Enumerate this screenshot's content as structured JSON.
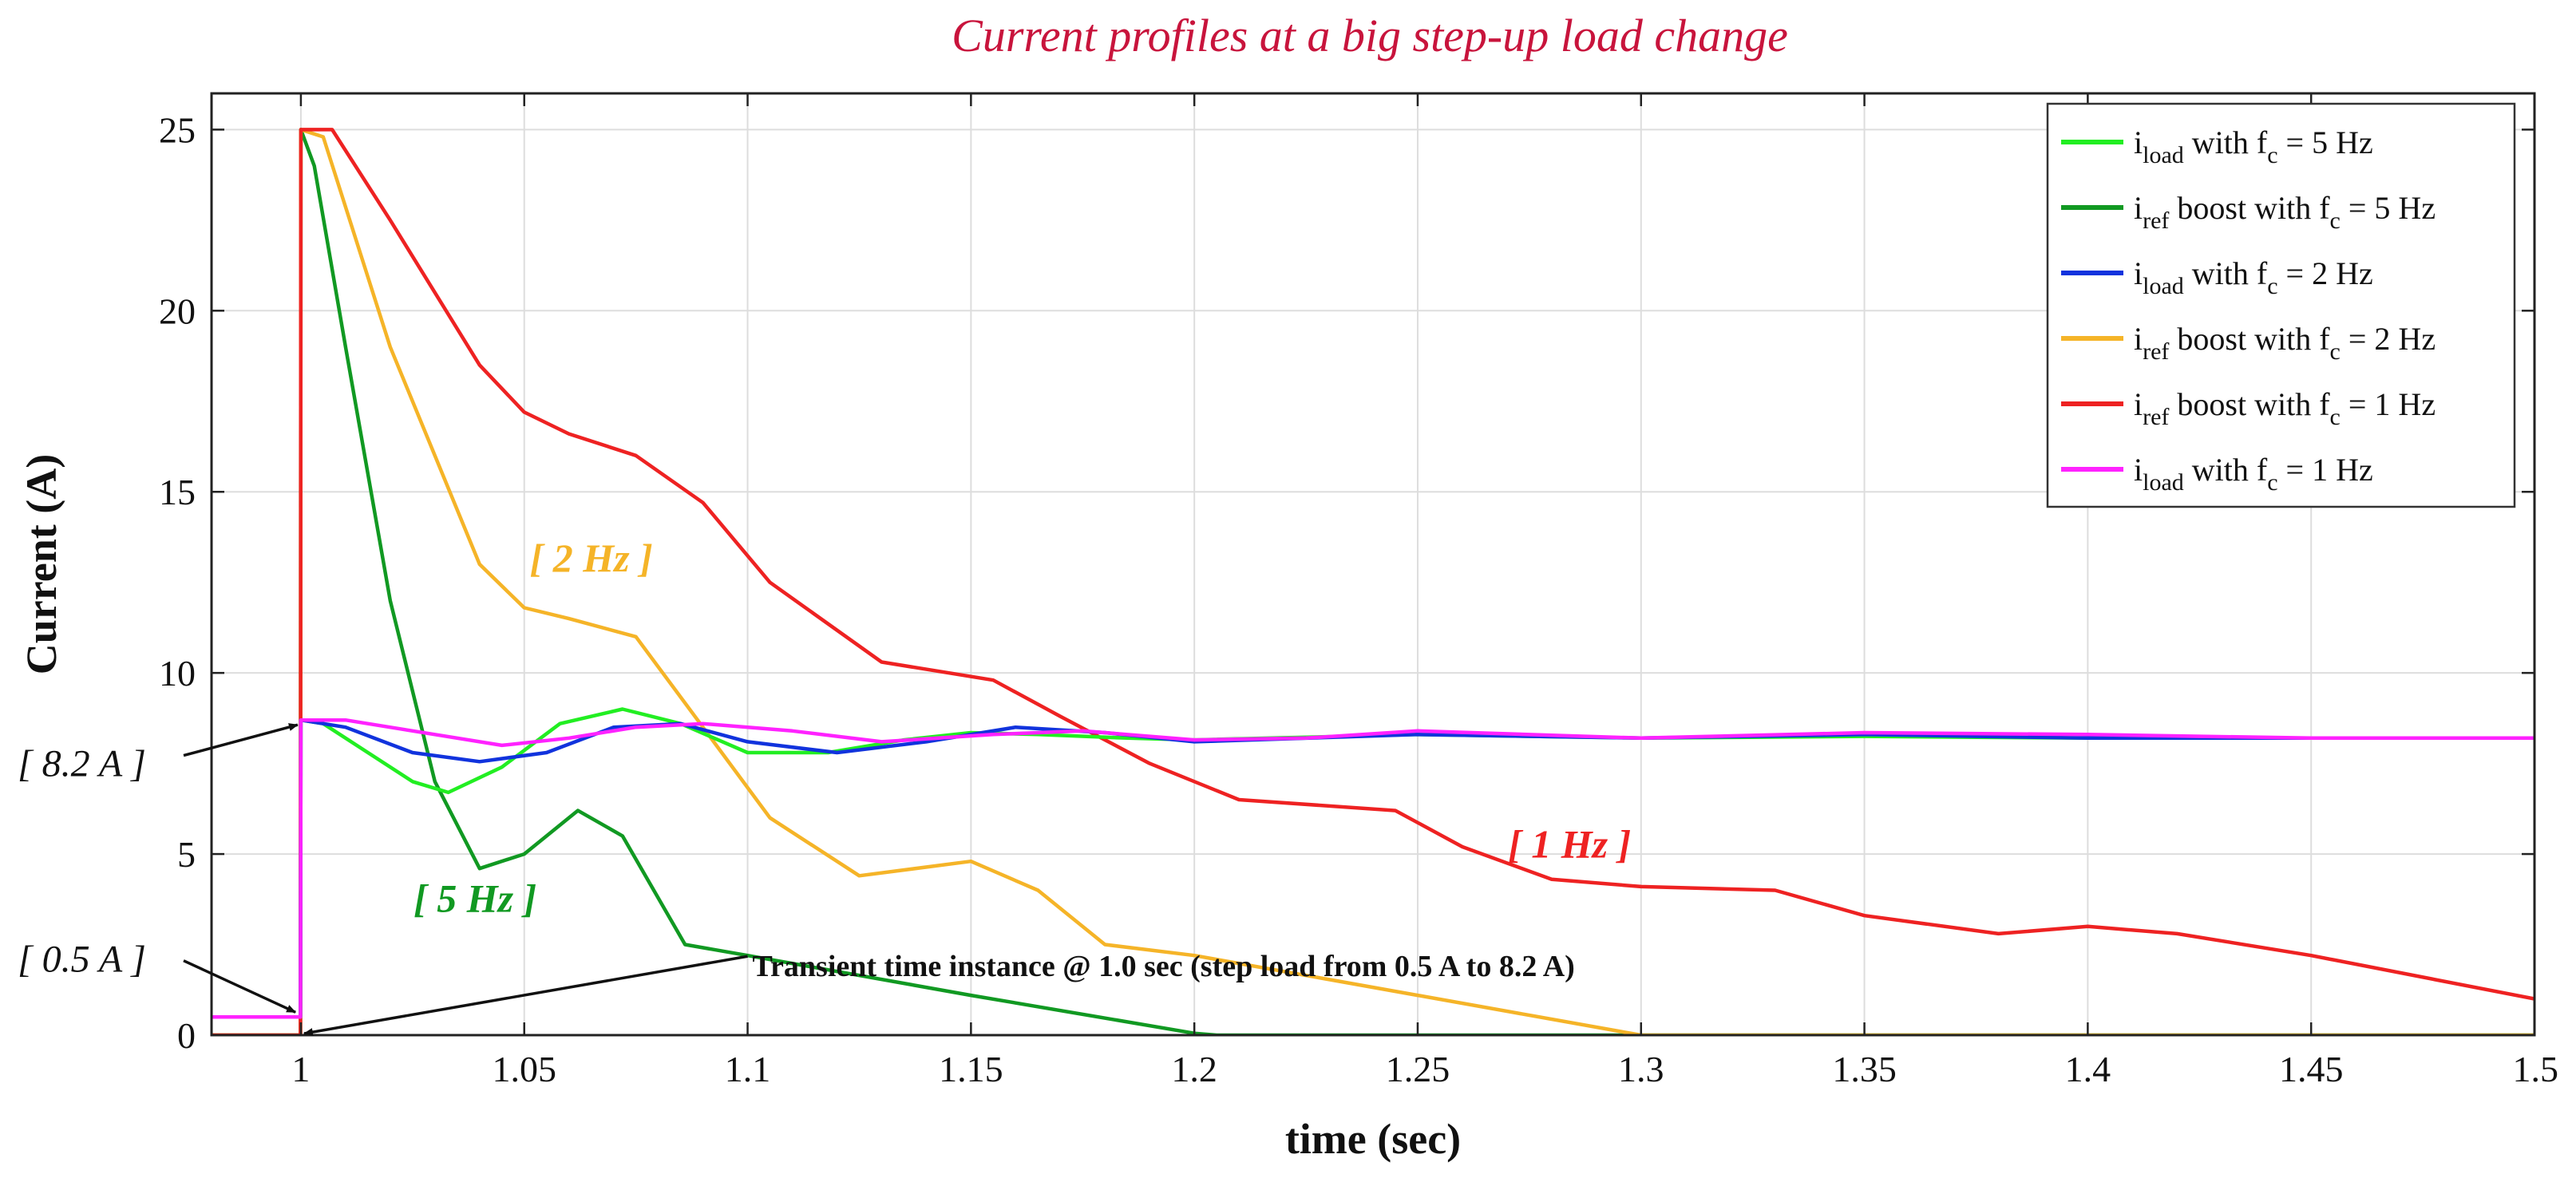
{
  "chart_data": {
    "type": "line",
    "title": "Current profiles at a big step-up load change",
    "xlabel": "time (sec)",
    "ylabel": "Current (A)",
    "xlim": [
      0.98,
      1.5
    ],
    "ylim": [
      0,
      26
    ],
    "grid": true,
    "legend_position": "top-right",
    "x_ticks": [
      1,
      1.05,
      1.1,
      1.15,
      1.2,
      1.25,
      1.3,
      1.35,
      1.4,
      1.45,
      1.5
    ],
    "x_tick_labels": [
      "1",
      "1.05",
      "1.1",
      "1.15",
      "1.2",
      "1.25",
      "1.3",
      "1.35",
      "1.4",
      "1.45",
      "1.5"
    ],
    "y_ticks": [
      0,
      5,
      10,
      15,
      20,
      25
    ],
    "y_tick_labels": [
      "0",
      "5",
      "10",
      "15",
      "20",
      "25"
    ],
    "series": [
      {
        "name": "i_load with f_c = 5 Hz",
        "legend": {
          "main": "i",
          "sub": "load",
          "mid": " with f",
          "sub2": "c",
          "tail": " = 5 Hz"
        },
        "color": "#22ee22",
        "x": [
          0.98,
          0.9999,
          1.0,
          1.005,
          1.015,
          1.025,
          1.033,
          1.045,
          1.058,
          1.072,
          1.085,
          1.1,
          1.118,
          1.135,
          1.15,
          1.165,
          1.185,
          1.2,
          1.25,
          1.3,
          1.35,
          1.4,
          1.45,
          1.5
        ],
        "y": [
          0.5,
          0.5,
          8.7,
          8.6,
          7.8,
          7.0,
          6.7,
          7.4,
          8.6,
          9.0,
          8.6,
          7.8,
          7.8,
          8.15,
          8.35,
          8.3,
          8.2,
          8.15,
          8.3,
          8.2,
          8.25,
          8.2,
          8.2,
          8.2
        ]
      },
      {
        "name": "i_ref boost with f_c = 5 Hz",
        "legend": {
          "main": "i",
          "sub": "ref",
          "mid": " boost with f",
          "sub2": "c",
          "tail": " = 5 Hz"
        },
        "color": "#119922",
        "x": [
          0.98,
          0.9999,
          1.0,
          1.003,
          1.01,
          1.02,
          1.03,
          1.04,
          1.05,
          1.062,
          1.072,
          1.086,
          1.1,
          1.15,
          1.2,
          1.205,
          1.3,
          1.4,
          1.5
        ],
        "y": [
          0,
          0,
          25.0,
          24.0,
          19.0,
          12.0,
          7.0,
          4.6,
          5.0,
          6.2,
          5.5,
          2.5,
          2.2,
          1.1,
          0.05,
          0,
          0,
          0,
          0
        ]
      },
      {
        "name": "i_load with f_c = 2 Hz",
        "legend": {
          "main": "i",
          "sub": "load",
          "mid": " with f",
          "sub2": "c",
          "tail": " = 2 Hz"
        },
        "color": "#1133dd",
        "x": [
          0.98,
          0.9999,
          1.0,
          1.01,
          1.025,
          1.04,
          1.055,
          1.07,
          1.085,
          1.1,
          1.12,
          1.14,
          1.16,
          1.18,
          1.2,
          1.25,
          1.3,
          1.35,
          1.4,
          1.45,
          1.5
        ],
        "y": [
          0.5,
          0.5,
          8.7,
          8.5,
          7.8,
          7.55,
          7.8,
          8.5,
          8.6,
          8.1,
          7.8,
          8.1,
          8.5,
          8.35,
          8.1,
          8.3,
          8.2,
          8.3,
          8.2,
          8.2,
          8.2
        ]
      },
      {
        "name": "i_ref boost with f_c = 2 Hz",
        "legend": {
          "main": "i",
          "sub": "ref",
          "mid": " boost with f",
          "sub2": "c",
          "tail": " = 2 Hz"
        },
        "color": "#f5b428",
        "x": [
          0.98,
          0.9999,
          1.0,
          1.005,
          1.02,
          1.04,
          1.05,
          1.06,
          1.075,
          1.09,
          1.105,
          1.125,
          1.15,
          1.165,
          1.18,
          1.2,
          1.25,
          1.3,
          1.35,
          1.4,
          1.5
        ],
        "y": [
          0,
          0,
          25.0,
          24.8,
          19.0,
          13.0,
          11.8,
          11.5,
          11.0,
          8.5,
          6.0,
          4.4,
          4.8,
          4.0,
          2.5,
          2.2,
          1.1,
          0,
          0,
          0,
          0
        ]
      },
      {
        "name": "i_ref boost with f_c = 1 Hz",
        "legend": {
          "main": "i",
          "sub": "ref",
          "mid": " boost with f",
          "sub2": "c",
          "tail": " = 1 Hz"
        },
        "color": "#ee2222",
        "x": [
          0.98,
          0.9999,
          1.0,
          1.007,
          1.02,
          1.04,
          1.05,
          1.06,
          1.075,
          1.09,
          1.105,
          1.13,
          1.155,
          1.17,
          1.19,
          1.21,
          1.245,
          1.26,
          1.28,
          1.3,
          1.33,
          1.35,
          1.38,
          1.4,
          1.42,
          1.45,
          1.5
        ],
        "y": [
          0,
          0,
          25.0,
          25.0,
          22.5,
          18.5,
          17.2,
          16.6,
          16.0,
          14.7,
          12.5,
          10.3,
          9.8,
          8.8,
          7.5,
          6.5,
          6.2,
          5.2,
          4.3,
          4.1,
          4.0,
          3.3,
          2.8,
          3.0,
          2.8,
          2.2,
          1.0
        ]
      },
      {
        "name": "i_load with f_c = 1 Hz",
        "legend": {
          "main": "i",
          "sub": "load",
          "mid": " with f",
          "sub2": "c",
          "tail": " = 1 Hz"
        },
        "color": "#ff22ff",
        "x": [
          0.98,
          0.9999,
          1.0,
          1.01,
          1.03,
          1.045,
          1.06,
          1.075,
          1.09,
          1.11,
          1.13,
          1.155,
          1.175,
          1.2,
          1.225,
          1.25,
          1.3,
          1.35,
          1.4,
          1.45,
          1.5
        ],
        "y": [
          0.5,
          0.5,
          8.7,
          8.7,
          8.3,
          8.0,
          8.2,
          8.5,
          8.6,
          8.4,
          8.1,
          8.3,
          8.4,
          8.15,
          8.2,
          8.4,
          8.2,
          8.35,
          8.3,
          8.2,
          8.2
        ]
      }
    ],
    "annotations": [
      {
        "text": "[ 2 Hz ]",
        "x": 1.065,
        "y": 12.8,
        "color": "#f5b428",
        "style": "italic-bold"
      },
      {
        "text": "[ 5 Hz ]",
        "x": 1.039,
        "y": 3.4,
        "color": "#119922",
        "style": "italic-bold"
      },
      {
        "text": "[ 1 Hz ]",
        "x": 1.284,
        "y": 4.9,
        "color": "#ee2222",
        "style": "italic-bold"
      },
      {
        "text": "Transient time instance @ 1.0 sec (step load from 0.5 A to 8.2 A)",
        "x": 1.1,
        "y": 1.9,
        "color": "#111111",
        "style": "bold",
        "arrow_to": [
          1.0,
          0.0
        ],
        "arrow_from": [
          1.1,
          2.0
        ]
      }
    ],
    "side_labels": [
      {
        "text": "[ 8.2 A ]",
        "y": 7.5,
        "arrow_to": [
          1.0,
          8.7
        ]
      },
      {
        "text": "[ 0.5 A ]",
        "y": 2.1,
        "arrow_to": [
          0.9995,
          0.5
        ]
      }
    ]
  }
}
